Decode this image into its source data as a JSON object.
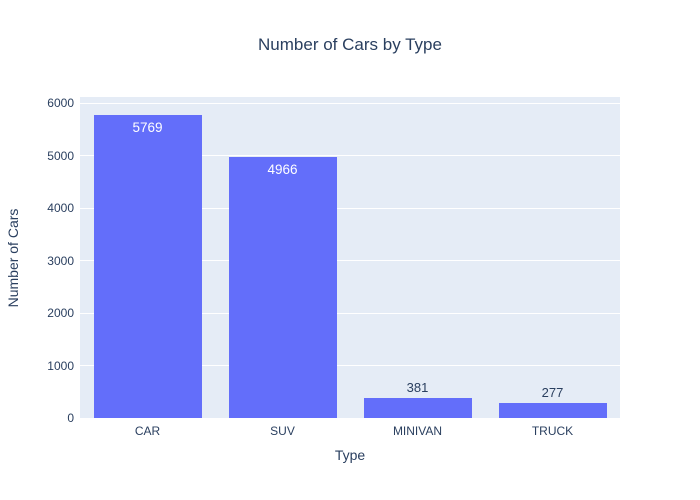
{
  "chart_data": {
    "type": "bar",
    "title": "Number of Cars by Type",
    "xlabel": "Type",
    "ylabel": "Number of Cars",
    "categories": [
      "CAR",
      "SUV",
      "MINIVAN",
      "TRUCK"
    ],
    "values": [
      5769,
      4966,
      381,
      277
    ],
    "bar_labels": [
      "5769",
      "4966",
      "381",
      "277"
    ],
    "ylim": [
      0,
      6000
    ],
    "yticks": [
      0,
      1000,
      2000,
      3000,
      4000,
      5000,
      6000
    ],
    "grid": "horizontal-white",
    "legend": "none",
    "colors": {
      "bar": "#636efa",
      "plot_background": "#e5ecf6",
      "gridline": "#ffffff",
      "text": "#2a3f5f",
      "label_inside": "#ffffff",
      "paper_background": "#ffffff"
    }
  }
}
